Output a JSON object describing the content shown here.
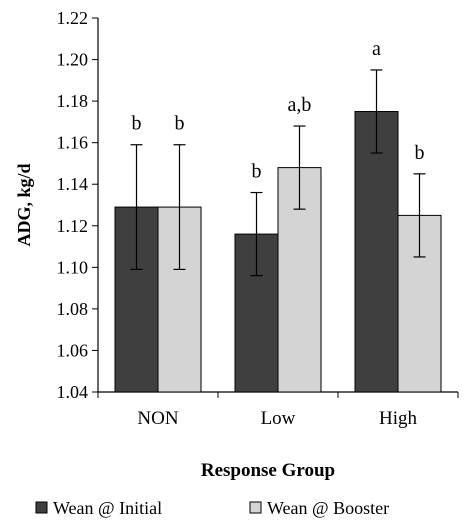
{
  "chart_data": {
    "type": "bar",
    "xlabel": "Response Group",
    "ylabel": "ADG, kg/d",
    "ylim": [
      1.04,
      1.22
    ],
    "ytick_step": 0.02,
    "yticks": [
      "1.04",
      "1.06",
      "1.08",
      "1.10",
      "1.12",
      "1.14",
      "1.16",
      "1.18",
      "1.20",
      "1.22"
    ],
    "categories": [
      "NON",
      "Low",
      "High"
    ],
    "grid": false,
    "legend_position": "bottom",
    "series": [
      {
        "name": "Wean @ Initial",
        "color": "#3f3f3f",
        "values": [
          1.129,
          1.116,
          1.175
        ],
        "errors": [
          0.03,
          0.02,
          0.02
        ],
        "labels": [
          "b",
          "b",
          "a"
        ]
      },
      {
        "name": "Wean @ Booster",
        "color": "#d4d4d4",
        "values": [
          1.129,
          1.148,
          1.125
        ],
        "errors": [
          0.03,
          0.02,
          0.02
        ],
        "labels": [
          "b",
          "a,b",
          "b"
        ]
      }
    ]
  }
}
